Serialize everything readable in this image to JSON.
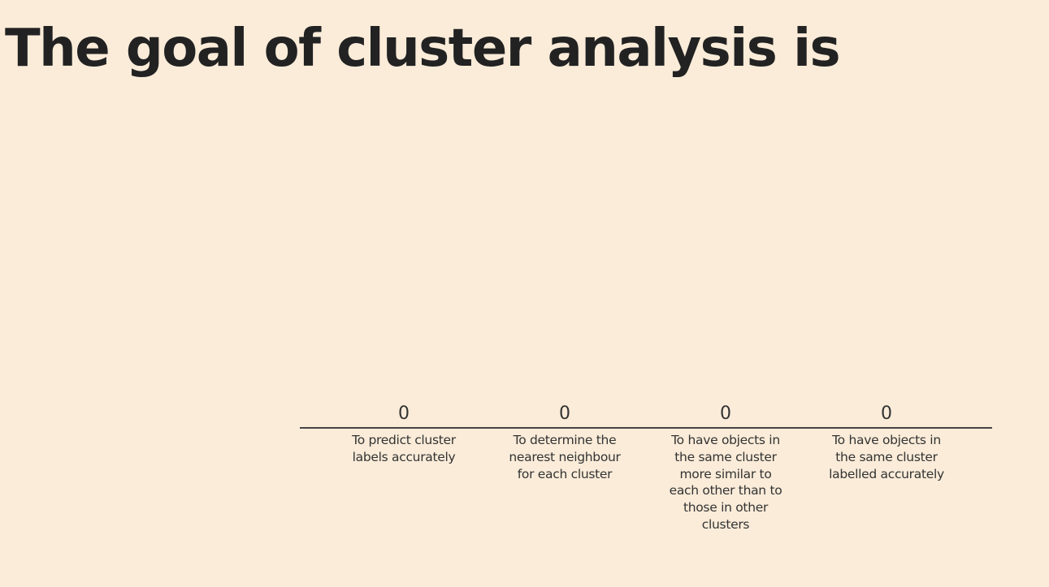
{
  "question": {
    "title": "The goal of cluster analysis is"
  },
  "colors": {
    "background": "#faecd9",
    "text": "#222222",
    "axis": "#444444",
    "bar": "#5b6ee1"
  },
  "chart_data": {
    "type": "bar",
    "categories": [
      "To predict cluster labels accurately",
      "To determine the nearest neighbour for each cluster",
      "To have objects in the same cluster more similar to each other than to those in other clusters",
      "To have objects in the same cluster labelled accurately"
    ],
    "values": [
      0,
      0,
      0,
      0
    ],
    "title": "The goal of cluster analysis is",
    "xlabel": "",
    "ylabel": "",
    "grid": false,
    "legend": "none"
  }
}
